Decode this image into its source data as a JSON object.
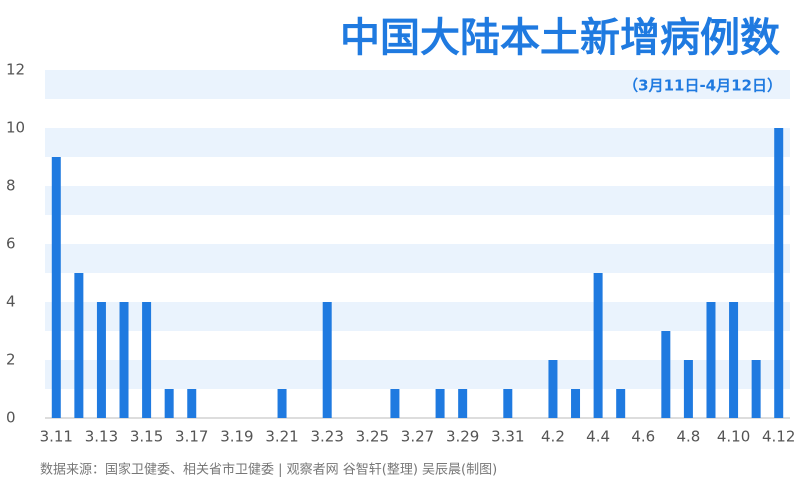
{
  "chart_data": {
    "type": "bar",
    "title": "中国大陆本土新增病例数",
    "subtitle": "（3月11日-4月12日）",
    "source": "数据来源：国家卫健委、相关省市卫健委  |  观察者网 谷智轩(整理) 吴辰晨(制图)",
    "categories": [
      "3.11",
      null,
      "3.13",
      null,
      "3.15",
      null,
      "3.17",
      null,
      "3.19",
      null,
      "3.21",
      null,
      "3.23",
      null,
      "3.25",
      null,
      "3.27",
      null,
      "3.29",
      null,
      "3.31",
      null,
      "4.2",
      null,
      "4.4",
      null,
      "4.6",
      null,
      "4.8",
      null,
      "4.10",
      null,
      "4.12"
    ],
    "values": [
      9,
      5,
      4,
      4,
      4,
      1,
      1,
      0,
      0,
      0,
      1,
      0,
      4,
      0,
      0,
      1,
      0,
      1,
      1,
      0,
      1,
      0,
      2,
      1,
      5,
      1,
      0,
      3,
      2,
      4,
      4,
      2,
      10
    ],
    "color": "#1f7ae0",
    "ylim": [
      0,
      12
    ],
    "yticks": [
      0,
      2,
      4,
      6,
      8,
      10,
      12
    ],
    "grid": "bands"
  }
}
